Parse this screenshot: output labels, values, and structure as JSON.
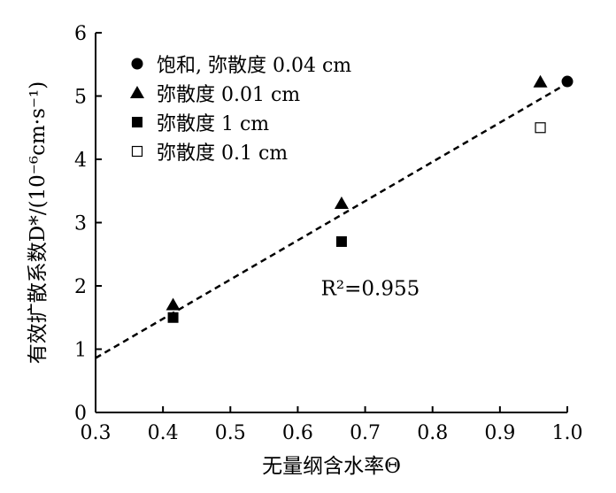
{
  "chart_data": {
    "type": "scatter",
    "xlabel": "无量纲含水率Θ",
    "ylabel": "有效扩散系数D*/(10⁻⁶cm·s⁻¹)",
    "xlim": [
      0.3,
      1.0
    ],
    "ylim": [
      0,
      6
    ],
    "xticks": [
      "0.3",
      "0.4",
      "0.5",
      "0.6",
      "0.7",
      "0.8",
      "0.9",
      "1.0"
    ],
    "yticks": [
      "0",
      "1",
      "2",
      "3",
      "4",
      "5",
      "6"
    ],
    "grid": false,
    "legend_position": "top-left",
    "series": [
      {
        "name": "饱和, 弥散度 0.04 cm",
        "marker": "circle-filled",
        "points": [
          [
            1.0,
            5.23
          ]
        ]
      },
      {
        "name": "弥散度 0.01 cm",
        "marker": "triangle-filled",
        "points": [
          [
            0.415,
            1.7
          ],
          [
            0.665,
            3.3
          ],
          [
            0.96,
            5.22
          ]
        ]
      },
      {
        "name": "弥散度 1 cm",
        "marker": "square-filled",
        "points": [
          [
            0.415,
            1.5
          ],
          [
            0.665,
            2.7
          ]
        ]
      },
      {
        "name": "弥散度 0.1 cm",
        "marker": "square-open",
        "points": [
          [
            0.96,
            4.5
          ]
        ]
      }
    ],
    "fit_line": {
      "style": "dashed",
      "x": [
        0.3,
        1.0
      ],
      "y": [
        0.86,
        5.2
      ]
    },
    "annotation": {
      "text": "R²=0.955",
      "x": 0.7,
      "y": 1.98
    }
  }
}
